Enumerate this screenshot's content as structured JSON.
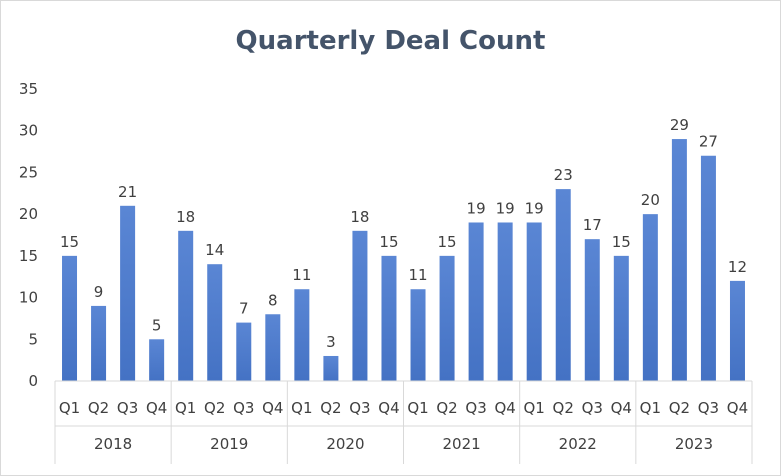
{
  "chart_data": {
    "type": "bar",
    "title": "Quarterly Deal Count",
    "xlabel": "",
    "ylabel": "",
    "ylim": [
      0,
      35
    ],
    "yticks": [
      0,
      5,
      10,
      15,
      20,
      25,
      30,
      35
    ],
    "grid": false,
    "legend": "none",
    "bar_color": "#4472c4",
    "groups": [
      "2018",
      "2019",
      "2020",
      "2021",
      "2022",
      "2023"
    ],
    "quarters": [
      "Q1",
      "Q2",
      "Q3",
      "Q4"
    ],
    "categories": [
      "2018 Q1",
      "2018 Q2",
      "2018 Q3",
      "2018 Q4",
      "2019 Q1",
      "2019 Q2",
      "2019 Q3",
      "2019 Q4",
      "2020 Q1",
      "2020 Q2",
      "2020 Q3",
      "2020 Q4",
      "2021 Q1",
      "2021 Q2",
      "2021 Q3",
      "2021 Q4",
      "2022 Q1",
      "2022 Q2",
      "2022 Q3",
      "2022 Q4",
      "2023 Q1",
      "2023 Q2",
      "2023 Q3",
      "2023 Q4"
    ],
    "values": [
      15,
      9,
      21,
      5,
      18,
      14,
      7,
      8,
      11,
      3,
      18,
      15,
      11,
      15,
      19,
      19,
      19,
      23,
      17,
      15,
      20,
      29,
      27,
      12
    ]
  }
}
